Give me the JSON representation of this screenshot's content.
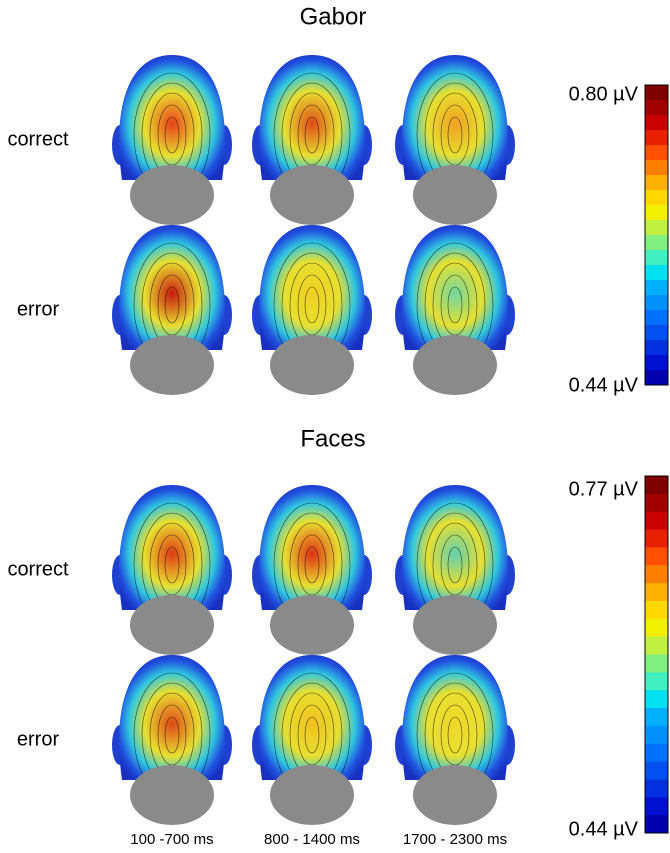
{
  "panels": [
    {
      "title": "Gabor",
      "rows": [
        {
          "label": "correct"
        },
        {
          "label": "error"
        }
      ],
      "colorbar": {
        "max_label": "0.80 µV",
        "min_label": "0.44 µV"
      }
    },
    {
      "title": "Faces",
      "rows": [
        {
          "label": "correct"
        },
        {
          "label": "error"
        }
      ],
      "colorbar": {
        "max_label": "0.77 µV",
        "min_label": "0.44 µV"
      }
    }
  ],
  "time_labels": [
    "100 -700 ms",
    "800 - 1400 ms",
    "1700 - 2300 ms"
  ]
}
